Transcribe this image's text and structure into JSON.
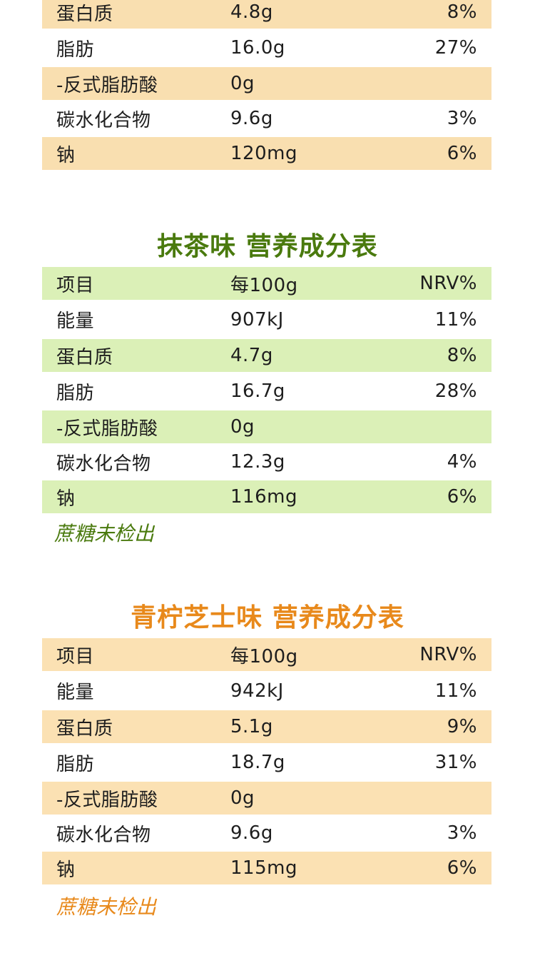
{
  "colors": {
    "orange_shade": "#f9dfb0",
    "green_shade": "#dbf0b7",
    "green_title": "#4a7a0e",
    "orange_title": "#e8891b"
  },
  "section1": {
    "rows": [
      {
        "name": "蛋白质",
        "value": "4.8g",
        "nrv": "8%"
      },
      {
        "name": "脂肪",
        "value": "16.0g",
        "nrv": "27%"
      },
      {
        "name": "-反式脂肪酸",
        "value": "0g",
        "nrv": ""
      },
      {
        "name": "碳水化合物",
        "value": "9.6g",
        "nrv": "3%"
      },
      {
        "name": "钠",
        "value": "120mg",
        "nrv": "6%"
      }
    ]
  },
  "section2": {
    "title": "抹茶味  营养成分表",
    "rows": [
      {
        "name": "项目",
        "value": "每100g",
        "nrv": "NRV%"
      },
      {
        "name": "能量",
        "value": "907kJ",
        "nrv": "11%"
      },
      {
        "name": "蛋白质",
        "value": "4.7g",
        "nrv": "8%"
      },
      {
        "name": "脂肪",
        "value": "16.7g",
        "nrv": "28%"
      },
      {
        "name": "-反式脂肪酸",
        "value": "0g",
        "nrv": ""
      },
      {
        "name": "碳水化合物",
        "value": "12.3g",
        "nrv": "4%"
      },
      {
        "name": "钠",
        "value": "116mg",
        "nrv": "6%"
      }
    ],
    "note": "蔗糖未检出"
  },
  "section3": {
    "title": "青柠芝士味  营养成分表",
    "rows": [
      {
        "name": "项目",
        "value": "每100g",
        "nrv": "NRV%"
      },
      {
        "name": "能量",
        "value": "942kJ",
        "nrv": "11%"
      },
      {
        "name": "蛋白质",
        "value": "5.1g",
        "nrv": "9%"
      },
      {
        "name": "脂肪",
        "value": "18.7g",
        "nrv": "31%"
      },
      {
        "name": "-反式脂肪酸",
        "value": "0g",
        "nrv": ""
      },
      {
        "name": "碳水化合物",
        "value": "9.6g",
        "nrv": "3%"
      },
      {
        "name": "钠",
        "value": "115mg",
        "nrv": "6%"
      }
    ],
    "note": "蔗糖未检出"
  }
}
